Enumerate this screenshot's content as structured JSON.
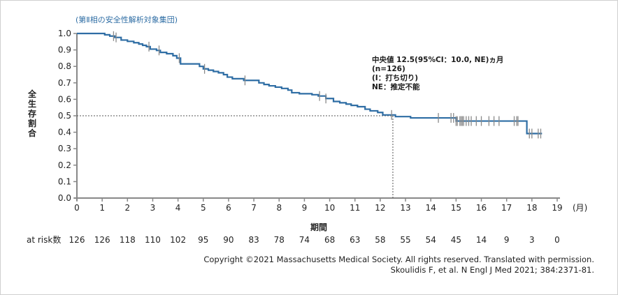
{
  "chart_data": {
    "type": "line",
    "subtitle": "(第Ⅱ相の安全性解析対象集団)",
    "title": "",
    "xlabel": "期間",
    "x_unit": "(月)",
    "ylabel": "全生存割合",
    "xlim": [
      0,
      19
    ],
    "ylim": [
      0,
      1.0
    ],
    "x_ticks": [
      0,
      1,
      2,
      3,
      4,
      5,
      6,
      7,
      8,
      9,
      10,
      11,
      12,
      13,
      14,
      15,
      16,
      17,
      18,
      19
    ],
    "y_ticks": [
      "0.0",
      "0.1",
      "0.2",
      "0.3",
      "0.4",
      "0.5",
      "0.6",
      "0.7",
      "0.8",
      "0.9",
      "1.0"
    ],
    "grid": false,
    "series": [
      {
        "name": "全生存割合",
        "color": "#2e6da4",
        "steps": [
          [
            0,
            1.0
          ],
          [
            1.1,
            0.992
          ],
          [
            1.3,
            0.984
          ],
          [
            1.5,
            0.976
          ],
          [
            1.75,
            0.96
          ],
          [
            2.0,
            0.952
          ],
          [
            2.25,
            0.944
          ],
          [
            2.45,
            0.936
          ],
          [
            2.6,
            0.928
          ],
          [
            2.75,
            0.92
          ],
          [
            2.9,
            0.905
          ],
          [
            3.15,
            0.897
          ],
          [
            3.3,
            0.885
          ],
          [
            3.55,
            0.877
          ],
          [
            3.8,
            0.865
          ],
          [
            3.95,
            0.85
          ],
          [
            4.1,
            0.815
          ],
          [
            4.85,
            0.8
          ],
          [
            5.0,
            0.785
          ],
          [
            5.2,
            0.777
          ],
          [
            5.4,
            0.769
          ],
          [
            5.6,
            0.761
          ],
          [
            5.8,
            0.75
          ],
          [
            5.95,
            0.735
          ],
          [
            6.15,
            0.725
          ],
          [
            6.6,
            0.715
          ],
          [
            7.2,
            0.7
          ],
          [
            7.4,
            0.69
          ],
          [
            7.6,
            0.682
          ],
          [
            7.85,
            0.674
          ],
          [
            8.1,
            0.666
          ],
          [
            8.35,
            0.656
          ],
          [
            8.5,
            0.64
          ],
          [
            8.8,
            0.634
          ],
          [
            9.3,
            0.628
          ],
          [
            9.55,
            0.62
          ],
          [
            9.85,
            0.605
          ],
          [
            10.15,
            0.587
          ],
          [
            10.4,
            0.579
          ],
          [
            10.65,
            0.571
          ],
          [
            10.85,
            0.563
          ],
          [
            11.1,
            0.555
          ],
          [
            11.4,
            0.54
          ],
          [
            11.6,
            0.53
          ],
          [
            11.9,
            0.52
          ],
          [
            12.1,
            0.505
          ],
          [
            12.6,
            0.495
          ],
          [
            13.2,
            0.487
          ],
          [
            15.0,
            0.468
          ],
          [
            17.8,
            0.392
          ],
          [
            18.4,
            0.392
          ]
        ],
        "censored_x": [
          1.45,
          1.55,
          2.85,
          3.25,
          4.05,
          5.05,
          6.65,
          9.6,
          9.85,
          12.45,
          14.3,
          14.8,
          14.9,
          15.0,
          15.05,
          15.15,
          15.2,
          15.25,
          15.3,
          15.4,
          15.5,
          15.6,
          15.8,
          16.0,
          16.3,
          16.5,
          16.7,
          17.3,
          17.4,
          17.45,
          17.9,
          18.0,
          18.25,
          18.35
        ]
      }
    ],
    "reference_lines": {
      "median_y": 0.5,
      "median_x": 12.5
    },
    "annotation": [
      "中央値 12.5(95%CI：10.0, NE)ヵ月",
      "(n=126)",
      "(I：打ち切り)",
      "NE：推定不能"
    ],
    "at_risk": {
      "label": "at risk数",
      "values": [
        "126",
        "126",
        "118",
        "110",
        "102",
        "95",
        "90",
        "83",
        "78",
        "74",
        "68",
        "63",
        "58",
        "55",
        "54",
        "45",
        "14",
        "9",
        "3",
        "0"
      ]
    }
  },
  "copyright": {
    "line1": "Copyright ©2021 Massachusetts Medical Society. All rights reserved. Translated with permission.",
    "line2": "Skoulidis F, et al. N Engl J Med 2021; 384:2371-81."
  }
}
